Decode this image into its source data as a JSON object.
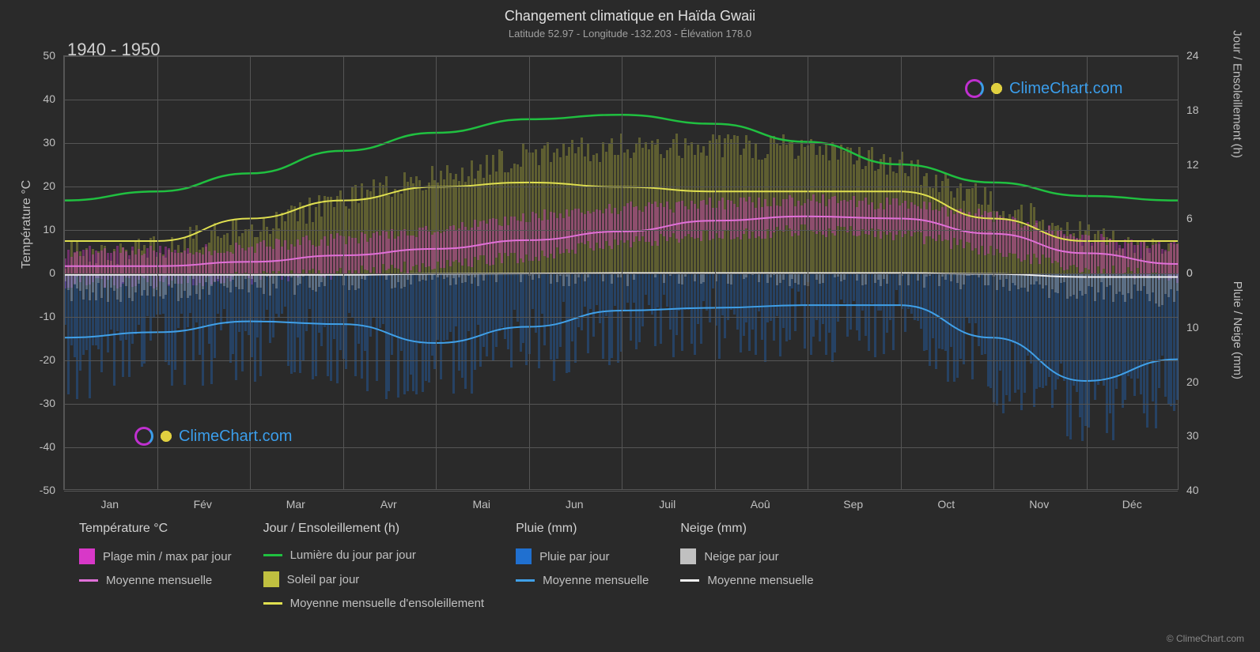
{
  "title": "Changement climatique en Haïda Gwaii",
  "subtitle": "Latitude 52.97 - Longitude -132.203 - Élévation 178.0",
  "period": "1940 - 1950",
  "watermark_text": "ClimeChart.com",
  "copyright": "© ClimeChart.com",
  "y_left": {
    "label": "Température °C",
    "min": -50,
    "max": 50,
    "ticks": [
      -50,
      -40,
      -30,
      -20,
      -10,
      0,
      10,
      20,
      30,
      40,
      50
    ]
  },
  "y_right_top": {
    "label": "Jour / Ensoleillement (h)",
    "ticks": [
      0,
      6,
      12,
      18,
      24
    ]
  },
  "y_right_bot": {
    "label": "Pluie / Neige (mm)",
    "ticks": [
      0,
      10,
      20,
      30,
      40
    ]
  },
  "x": {
    "labels": [
      "Jan",
      "Fév",
      "Mar",
      "Avr",
      "Mai",
      "Jun",
      "Juil",
      "Aoû",
      "Sep",
      "Oct",
      "Nov",
      "Déc"
    ]
  },
  "colors": {
    "bg": "#2a2a2a",
    "grid": "#555555",
    "temp_range": "#d838c8",
    "temp_avg": "#e070d8",
    "daylight": "#20c040",
    "sun_bar": "#c0c040",
    "sun_avg": "#e0e050",
    "rain_bar": "#2070d0",
    "rain_avg": "#40a0e8",
    "snow_bar": "#c0c0c0",
    "snow_avg": "#f0f0f0"
  },
  "lines": {
    "daylight": [
      8.0,
      9.0,
      11.0,
      13.5,
      15.5,
      17.0,
      17.5,
      16.5,
      14.5,
      12.0,
      10.0,
      8.5,
      8.0
    ],
    "sun_avg": [
      3.5,
      3.5,
      6.0,
      8.0,
      9.5,
      10.0,
      9.5,
      9.0,
      9.0,
      9.0,
      6.0,
      3.5,
      3.5
    ],
    "temp_avg": [
      1.5,
      1.5,
      2.5,
      4.0,
      5.5,
      7.5,
      9.5,
      12.0,
      13.0,
      12.5,
      9.0,
      4.5,
      2.0
    ],
    "snow_avg": [
      -0.5,
      -0.5,
      -0.5,
      -0.5,
      -0.3,
      -0.2,
      -0.1,
      -0.1,
      -0.1,
      -0.1,
      -0.3,
      -1.0,
      -1.0
    ],
    "rain_avg": [
      12,
      11,
      9,
      9.5,
      13,
      10,
      7,
      6.5,
      6,
      6,
      12,
      20,
      16
    ]
  },
  "bg_samples": {
    "temp_min": [
      -2,
      -2,
      -1,
      0,
      2,
      4,
      7,
      9,
      10,
      9,
      5,
      1,
      -1
    ],
    "temp_max": [
      5,
      5,
      6,
      8,
      10,
      13,
      15,
      16,
      17,
      16,
      13,
      8,
      6
    ],
    "sun": [
      2,
      3,
      5,
      8,
      11,
      13,
      14,
      14,
      14,
      12,
      8,
      4,
      2
    ],
    "rain": [
      14,
      12,
      10,
      11,
      15,
      10,
      8,
      7,
      6,
      7,
      15,
      22,
      18
    ],
    "snow": [
      3,
      3,
      2,
      1,
      0,
      0,
      0,
      0,
      0,
      0,
      1,
      3,
      4
    ]
  },
  "legend": {
    "col1_title": "Température °C",
    "col1_items": [
      {
        "swatch": "bar",
        "color": "#d838c8",
        "label": "Plage min / max par jour"
      },
      {
        "swatch": "line",
        "color": "#e070d8",
        "label": "Moyenne mensuelle"
      }
    ],
    "col2_title": "Jour / Ensoleillement (h)",
    "col2_items": [
      {
        "swatch": "line",
        "color": "#20c040",
        "label": "Lumière du jour par jour"
      },
      {
        "swatch": "bar",
        "color": "#c0c040",
        "label": "Soleil par jour"
      },
      {
        "swatch": "line",
        "color": "#e0e050",
        "label": "Moyenne mensuelle d'ensoleillement"
      }
    ],
    "col3_title": "Pluie (mm)",
    "col3_items": [
      {
        "swatch": "bar",
        "color": "#2070d0",
        "label": "Pluie par jour"
      },
      {
        "swatch": "line",
        "color": "#40a0e8",
        "label": "Moyenne mensuelle"
      }
    ],
    "col4_title": "Neige (mm)",
    "col4_items": [
      {
        "swatch": "bar",
        "color": "#c0c0c0",
        "label": "Neige par jour"
      },
      {
        "swatch": "line",
        "color": "#f0f0f0",
        "label": "Moyenne mensuelle"
      }
    ]
  }
}
